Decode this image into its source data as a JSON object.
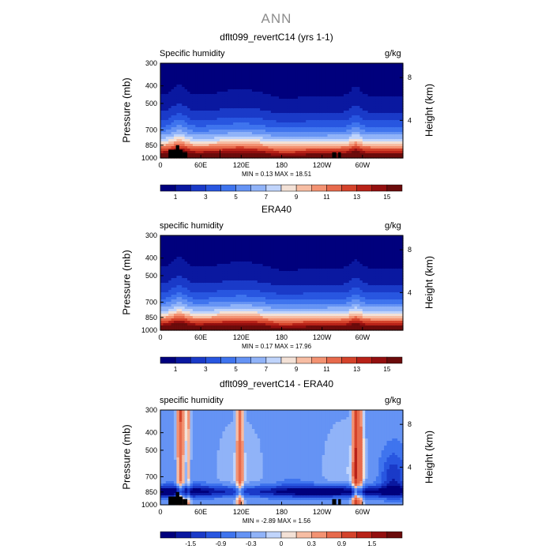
{
  "page_title": "ANN",
  "chart_data": [
    {
      "type": "heatmap",
      "title": "dflt099_revertC14 (yrs 1-1)",
      "left_title": "Specific humidity",
      "units": "g/kg",
      "ylabel": "Pressure (mb)",
      "ylabel_right": "Height (km)",
      "y_ticks": [
        "300",
        "400",
        "500",
        "700",
        "850",
        "1000"
      ],
      "y_tick_values": [
        300,
        400,
        500,
        700,
        850,
        1000
      ],
      "ylim": [
        1000,
        300
      ],
      "right_ticks": [
        "8",
        "4"
      ],
      "right_tick_values": [
        8,
        4
      ],
      "x_ticks": [
        "0",
        "60E",
        "120E",
        "180",
        "120W",
        "60W"
      ],
      "x_tick_values": [
        0,
        60,
        120,
        180,
        240,
        300
      ],
      "xlim": [
        0,
        360
      ],
      "min_label": "MIN =",
      "min_value": "0.13",
      "max_label": "MAX =",
      "max_value": "18.51",
      "colorbar_ticks": [
        "1",
        "3",
        "5",
        "7",
        "9",
        "11",
        "13",
        "15"
      ],
      "colorbar_levels": [
        1,
        2,
        3,
        4,
        5,
        6,
        7,
        8,
        9,
        10,
        11,
        12,
        13,
        14,
        15
      ],
      "colors": [
        "#00007d",
        "#0a18a0",
        "#1a3ac8",
        "#2856e0",
        "#3f74ee",
        "#6593f4",
        "#90b3f8",
        "#c0d4fb",
        "#f3e1d6",
        "#f7bda3",
        "#f39272",
        "#e76a4c",
        "#d4432b",
        "#b82218",
        "#930f0f",
        "#6b0b0b"
      ]
    },
    {
      "type": "heatmap",
      "title": "ERA40",
      "left_title": "specific humidity",
      "units": "g/kg",
      "ylabel": "Pressure (mb)",
      "ylabel_right": "Height (km)",
      "y_ticks": [
        "300",
        "400",
        "500",
        "700",
        "850",
        "1000"
      ],
      "y_tick_values": [
        300,
        400,
        500,
        700,
        850,
        1000
      ],
      "ylim": [
        1000,
        300
      ],
      "right_ticks": [
        "8",
        "4"
      ],
      "right_tick_values": [
        8,
        4
      ],
      "x_ticks": [
        "0",
        "60E",
        "120E",
        "180",
        "120W",
        "60W"
      ],
      "x_tick_values": [
        0,
        60,
        120,
        180,
        240,
        300
      ],
      "xlim": [
        0,
        360
      ],
      "min_label": "MIN =",
      "min_value": "0.17",
      "max_label": "MAX =",
      "max_value": "17.96",
      "colorbar_ticks": [
        "1",
        "3",
        "5",
        "7",
        "9",
        "11",
        "13",
        "15"
      ],
      "colorbar_levels": [
        1,
        2,
        3,
        4,
        5,
        6,
        7,
        8,
        9,
        10,
        11,
        12,
        13,
        14,
        15
      ],
      "colors": [
        "#00007d",
        "#0a18a0",
        "#1a3ac8",
        "#2856e0",
        "#3f74ee",
        "#6593f4",
        "#90b3f8",
        "#c0d4fb",
        "#f3e1d6",
        "#f7bda3",
        "#f39272",
        "#e76a4c",
        "#d4432b",
        "#b82218",
        "#930f0f",
        "#6b0b0b"
      ]
    },
    {
      "type": "heatmap",
      "title": "dflt099_revertC14 - ERA40",
      "left_title": "specific humidity",
      "units": "g/kg",
      "ylabel": "Pressure (mb)",
      "ylabel_right": "Height (km)",
      "y_ticks": [
        "300",
        "400",
        "500",
        "700",
        "850",
        "1000"
      ],
      "y_tick_values": [
        300,
        400,
        500,
        700,
        850,
        1000
      ],
      "ylim": [
        1000,
        300
      ],
      "right_ticks": [
        "8",
        "4"
      ],
      "right_tick_values": [
        8,
        4
      ],
      "x_ticks": [
        "0",
        "60E",
        "120E",
        "180",
        "120W",
        "60W"
      ],
      "x_tick_values": [
        0,
        60,
        120,
        180,
        240,
        300
      ],
      "xlim": [
        0,
        360
      ],
      "min_label": "MIN =",
      "min_value": "-2.89",
      "max_label": "MAX =",
      "max_value": "1.56",
      "colorbar_ticks": [
        "-1.5",
        "-0.9",
        "-0.3",
        "0",
        "0.3",
        "0.9",
        "1.5"
      ],
      "colorbar_levels": [
        -1.8,
        -1.5,
        -1.2,
        -0.9,
        -0.6,
        -0.3,
        -0.1,
        0,
        0.1,
        0.3,
        0.6,
        0.9,
        1.2,
        1.5,
        1.8
      ],
      "colors": [
        "#00007d",
        "#0a18a0",
        "#1a3ac8",
        "#2856e0",
        "#3f74ee",
        "#6593f4",
        "#90b3f8",
        "#c0d4fb",
        "#f3e1d6",
        "#f7bda3",
        "#f39272",
        "#e76a4c",
        "#d4432b",
        "#b82218",
        "#930f0f",
        "#6b0b0b"
      ]
    }
  ]
}
